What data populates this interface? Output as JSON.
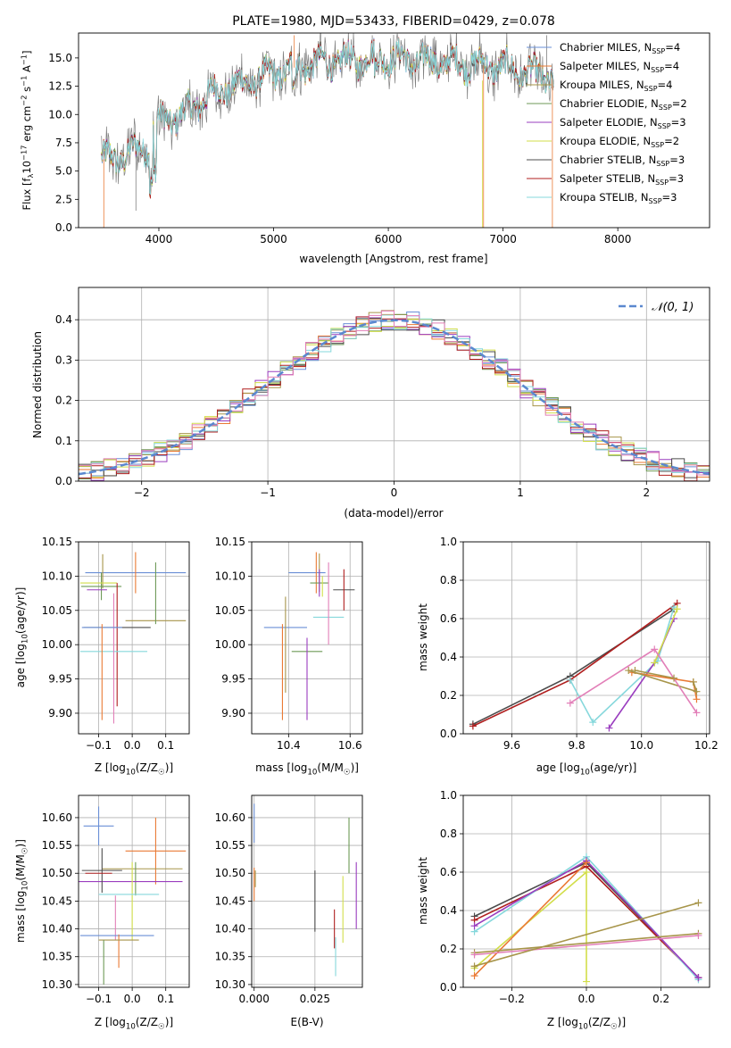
{
  "colors": [
    "#6a8fd6",
    "#ea7a34",
    "#a7954a",
    "#6e9a57",
    "#9a3dbf",
    "#d2de4a",
    "#4c4c4c",
    "#b01f1f",
    "#86d8dc",
    "#e27fb8",
    "#808080"
  ],
  "chart_data": [
    {
      "id": "spectrum",
      "type": "line",
      "title": "PLATE=1980, MJD=53433, FIBERID=0429, z=0.078",
      "xlabel": "wavelength [Angstrom, rest frame]",
      "ylabel": "Flux [f_λ10^{-17} erg cm^{-2} s^{-1} A^{-1}]",
      "xlim": [
        3300,
        8800
      ],
      "ylim": [
        0,
        17.2
      ],
      "xticks": [
        4000,
        5000,
        6000,
        7000,
        8000
      ],
      "yticks": [
        0.0,
        2.5,
        5.0,
        7.5,
        10.0,
        12.5,
        15.0
      ],
      "legend_position": "right",
      "legend": [
        "Chabrier MILES, N_SSP=4",
        "Salpeter MILES, N_SSP=4",
        "Kroupa MILES, N_SSP=4",
        "Chabrier ELODIE, N_SSP=2",
        "Salpeter ELODIE, N_SSP=3",
        "Kroupa ELODIE, N_SSP=2",
        "Chabrier STELIB, N_SSP=3",
        "Salpeter STELIB, N_SSP=3",
        "Kroupa STELIB, N_SSP=3"
      ],
      "continuum": {
        "wavelength": [
          3500,
          3700,
          3900,
          4000,
          4200,
          4400,
          4600,
          4800,
          5000,
          5200,
          5500,
          6000,
          6500,
          7000,
          7400
        ],
        "flux": [
          6.0,
          6.3,
          7.3,
          9.5,
          9.9,
          11.5,
          12.4,
          12.9,
          13.6,
          14.2,
          14.7,
          15.0,
          14.6,
          14.2,
          13.3
        ]
      }
    },
    {
      "id": "residuals",
      "type": "histogram",
      "xlabel": "(data-model)/error",
      "ylabel": "Normed distribution",
      "xlim": [
        -2.5,
        2.5
      ],
      "ylim": [
        0,
        0.48
      ],
      "xticks": [
        -2,
        -1,
        0,
        1,
        2
      ],
      "yticks": [
        0.0,
        0.1,
        0.2,
        0.3,
        0.4
      ],
      "legend": [
        "𝒩(0, 1)"
      ],
      "legend_position": "top-right",
      "reference_curve": {
        "mean": 0,
        "std": 1
      }
    },
    {
      "id": "age-vs-Z",
      "type": "errorbar",
      "xlabel": "Z [log10(Z/Z☉)]",
      "ylabel": "age  [log10(age/yr)]",
      "xlim": [
        -0.16,
        0.17
      ],
      "ylim": [
        9.87,
        10.15
      ],
      "xticks": [
        -0.1,
        0.0,
        0.1
      ],
      "yticks": [
        9.9,
        9.95,
        10.0,
        10.05,
        10.1,
        10.15
      ],
      "points": [
        {
          "x": 0.01,
          "y": 10.105,
          "xerr": 0.15,
          "yerr": 0.0
        },
        {
          "x": 0.01,
          "y": 10.105,
          "xerr": 0.0,
          "yerr": 0.03
        },
        {
          "x": -0.088,
          "y": 10.107,
          "xerr": 0.0,
          "yerr": 0.025
        },
        {
          "x": -0.092,
          "y": 10.085,
          "xerr": 0.06,
          "yerr": 0.02
        },
        {
          "x": -0.105,
          "y": 10.08,
          "xerr": 0.03,
          "yerr": 0.0
        },
        {
          "x": -0.1,
          "y": 10.09,
          "xerr": 0.055,
          "yerr": 0.0
        },
        {
          "x": -0.045,
          "y": 10.025,
          "xerr": 0.1,
          "yerr": 0.0
        },
        {
          "x": -0.045,
          "y": 10.0,
          "xerr": 0.0,
          "yerr": 0.09
        },
        {
          "x": -0.055,
          "y": 9.99,
          "xerr": 0.1,
          "yerr": 0.0
        },
        {
          "x": -0.055,
          "y": 9.98,
          "xerr": 0.0,
          "yerr": 0.095
        },
        {
          "x": -0.09,
          "y": 10.025,
          "xerr": 0.06,
          "yerr": 0.0
        },
        {
          "x": -0.09,
          "y": 9.96,
          "xerr": 0.0,
          "yerr": 0.07
        },
        {
          "x": 0.07,
          "y": 10.035,
          "xerr": 0.09,
          "yerr": 0.0
        },
        {
          "x": 0.07,
          "y": 10.075,
          "xerr": 0.0,
          "yerr": 0.045
        }
      ]
    },
    {
      "id": "age-vs-mass",
      "type": "errorbar",
      "xlabel": "mass [log10(M/M☉)]",
      "ylabel": "",
      "xlim": [
        10.28,
        10.64
      ],
      "ylim": [
        9.87,
        10.15
      ],
      "xticks": [
        10.4,
        10.6
      ],
      "yticks": [
        9.9,
        9.95,
        10.0,
        10.05,
        10.1,
        10.15
      ],
      "points": [
        {
          "x": 10.46,
          "y": 10.105,
          "xerr": 0.06,
          "yerr": 0.0
        },
        {
          "x": 10.49,
          "y": 10.105,
          "xerr": 0.0,
          "yerr": 0.03
        },
        {
          "x": 10.5,
          "y": 10.105,
          "xerr": 0.0,
          "yerr": 0.028
        },
        {
          "x": 10.5,
          "y": 10.09,
          "xerr": 0.03,
          "yerr": 0.0
        },
        {
          "x": 10.5,
          "y": 10.09,
          "xerr": 0.0,
          "yerr": 0.02
        },
        {
          "x": 10.51,
          "y": 10.085,
          "xerr": 0.0,
          "yerr": 0.015
        },
        {
          "x": 10.58,
          "y": 10.08,
          "xerr": 0.035,
          "yerr": 0.0
        },
        {
          "x": 10.58,
          "y": 10.08,
          "xerr": 0.0,
          "yerr": 0.03
        },
        {
          "x": 10.53,
          "y": 10.04,
          "xerr": 0.05,
          "yerr": 0.0
        },
        {
          "x": 10.53,
          "y": 10.06,
          "xerr": 0.0,
          "yerr": 0.06
        },
        {
          "x": 10.39,
          "y": 10.025,
          "xerr": 0.07,
          "yerr": 0.0
        },
        {
          "x": 10.38,
          "y": 9.96,
          "xerr": 0.0,
          "yerr": 0.07
        },
        {
          "x": 10.39,
          "y": 10.0,
          "xerr": 0.0,
          "yerr": 0.07
        },
        {
          "x": 10.46,
          "y": 9.99,
          "xerr": 0.05,
          "yerr": 0.0
        },
        {
          "x": 10.46,
          "y": 9.95,
          "xerr": 0.0,
          "yerr": 0.06
        }
      ]
    },
    {
      "id": "weight-vs-age",
      "type": "line",
      "xlabel": "age  [log10(age/yr)]",
      "ylabel": "mass weight",
      "xlim": [
        9.45,
        10.21
      ],
      "ylim": [
        0,
        1.0
      ],
      "xticks": [
        9.6,
        9.8,
        10.0,
        10.2
      ],
      "yticks": [
        0.0,
        0.2,
        0.4,
        0.6,
        0.8,
        1.0
      ],
      "series": [
        {
          "x": [
            9.48,
            9.78,
            10.1
          ],
          "y": [
            0.05,
            0.3,
            0.65
          ]
        },
        {
          "x": [
            9.48,
            9.78,
            10.11
          ],
          "y": [
            0.04,
            0.28,
            0.68
          ]
        },
        {
          "x": [
            9.78,
            9.85,
            10.05,
            10.1
          ],
          "y": [
            0.28,
            0.06,
            0.38,
            0.66
          ]
        },
        {
          "x": [
            9.9,
            10.04,
            10.1
          ],
          "y": [
            0.03,
            0.37,
            0.6
          ]
        },
        {
          "x": [
            10.04,
            10.11
          ],
          "y": [
            0.37,
            0.65
          ]
        },
        {
          "x": [
            9.97,
            10.16,
            10.17
          ],
          "y": [
            0.32,
            0.27,
            0.18
          ]
        },
        {
          "x": [
            9.96,
            10.17,
            10.16
          ],
          "y": [
            0.33,
            0.22,
            0.27
          ]
        },
        {
          "x": [
            9.78,
            10.04,
            10.17
          ],
          "y": [
            0.16,
            0.44,
            0.11
          ]
        },
        {
          "x": [
            9.98,
            10.1
          ],
          "y": [
            0.33,
            0.29
          ]
        }
      ]
    },
    {
      "id": "mass-vs-Z",
      "type": "errorbar",
      "xlabel": "Z [log10(Z/Z☉)]",
      "ylabel": "mass [log10(M/M☉)]",
      "xlim": [
        -0.16,
        0.17
      ],
      "ylim": [
        10.295,
        10.64
      ],
      "xticks": [
        -0.1,
        0.0,
        0.1
      ],
      "yticks": [
        10.3,
        10.35,
        10.4,
        10.45,
        10.5,
        10.55,
        10.6
      ],
      "points": [
        {
          "x": -0.1,
          "y": 10.585,
          "xerr": 0.045,
          "yerr": 0.035
        },
        {
          "x": 0.07,
          "y": 10.54,
          "xerr": 0.09,
          "yerr": 0.06
        },
        {
          "x": 0.03,
          "y": 10.508,
          "xerr": 0.12,
          "yerr": 0.0
        },
        {
          "x": 0.01,
          "y": 10.49,
          "xerr": 0.0,
          "yerr": 0.03
        },
        {
          "x": -0.03,
          "y": 10.485,
          "xerr": 0.18,
          "yerr": 0.0
        },
        {
          "x": 0.0,
          "y": 10.45,
          "xerr": 0.0,
          "yerr": 0.07
        },
        {
          "x": -0.09,
          "y": 10.505,
          "xerr": 0.06,
          "yerr": 0.04
        },
        {
          "x": -0.1,
          "y": 10.5,
          "xerr": 0.04,
          "yerr": 0.0
        },
        {
          "x": -0.01,
          "y": 10.462,
          "xerr": 0.09,
          "yerr": 0.0
        },
        {
          "x": -0.05,
          "y": 10.42,
          "xerr": 0.0,
          "yerr": 0.04
        },
        {
          "x": -0.045,
          "y": 10.388,
          "xerr": 0.11,
          "yerr": 0.0
        },
        {
          "x": -0.04,
          "y": 10.36,
          "xerr": 0.0,
          "yerr": 0.03
        },
        {
          "x": -0.04,
          "y": 10.38,
          "xerr": 0.06,
          "yerr": 0.0
        },
        {
          "x": -0.085,
          "y": 10.34,
          "xerr": 0.0,
          "yerr": 0.04
        }
      ]
    },
    {
      "id": "mass-vs-ebv",
      "type": "errorbar",
      "xlabel": "E(B-V)",
      "ylabel": "",
      "xlim": [
        -0.001,
        0.0445
      ],
      "ylim": [
        10.295,
        10.64
      ],
      "xticks": [
        0.0,
        0.025
      ],
      "yticks": [
        10.3,
        10.35,
        10.4,
        10.45,
        10.5,
        10.55,
        10.6
      ],
      "points": [
        {
          "x": 0.0,
          "y": 10.59,
          "xerr": 0.0,
          "yerr": 0.035
        },
        {
          "x": 0.0,
          "y": 10.48,
          "xerr": 0.0,
          "yerr": 0.03
        },
        {
          "x": 0.0005,
          "y": 10.49,
          "xerr": 0.0,
          "yerr": 0.015
        },
        {
          "x": 0.039,
          "y": 10.55,
          "xerr": 0.0,
          "yerr": 0.05
        },
        {
          "x": 0.042,
          "y": 10.46,
          "xerr": 0.0,
          "yerr": 0.06
        },
        {
          "x": 0.0365,
          "y": 10.435,
          "xerr": 0.0,
          "yerr": 0.06
        },
        {
          "x": 0.025,
          "y": 10.45,
          "xerr": 0.0,
          "yerr": 0.055
        },
        {
          "x": 0.033,
          "y": 10.4,
          "xerr": 0.0,
          "yerr": 0.035
        },
        {
          "x": 0.0335,
          "y": 10.35,
          "xerr": 0.0,
          "yerr": 0.035
        }
      ]
    },
    {
      "id": "weight-vs-Z",
      "type": "line",
      "xlabel": "Z [log10(Z/Z☉)]",
      "ylabel": "mass weight",
      "xlim": [
        -0.33,
        0.33
      ],
      "ylim": [
        0,
        1.0
      ],
      "xticks": [
        -0.2,
        0.0,
        0.2
      ],
      "yticks": [
        0.0,
        0.2,
        0.4,
        0.6,
        0.8,
        1.0
      ],
      "series": [
        {
          "x": [
            -0.3,
            0.0,
            0.3
          ],
          "y": [
            0.37,
            0.65,
            0.05
          ]
        },
        {
          "x": [
            -0.3,
            0.0,
            0.3
          ],
          "y": [
            0.35,
            0.63,
            0.05
          ]
        },
        {
          "x": [
            -0.3,
            0.0,
            0.3
          ],
          "y": [
            0.29,
            0.68,
            0.04
          ]
        },
        {
          "x": [
            -0.3,
            0.0,
            0.3
          ],
          "y": [
            0.32,
            0.66,
            0.05
          ]
        },
        {
          "x": [
            -0.3,
            0.0,
            0.0
          ],
          "y": [
            0.1,
            0.6,
            0.03
          ]
        },
        {
          "x": [
            -0.3,
            0.0
          ],
          "y": [
            0.06,
            0.65
          ]
        },
        {
          "x": [
            -0.3,
            0.3
          ],
          "y": [
            0.18,
            0.28
          ]
        },
        {
          "x": [
            -0.3,
            0.3
          ],
          "y": [
            0.17,
            0.27
          ]
        },
        {
          "x": [
            -0.3,
            0.3
          ],
          "y": [
            0.11,
            0.44
          ]
        }
      ]
    }
  ]
}
